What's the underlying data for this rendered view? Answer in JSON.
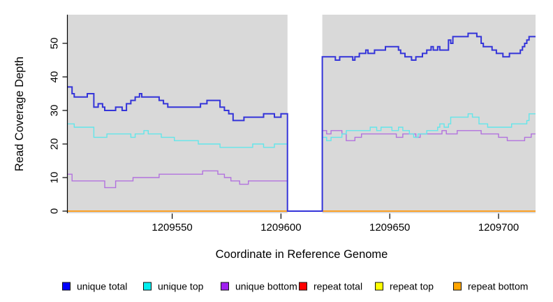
{
  "chart_data": {
    "type": "line",
    "subtype": "step-coverage-plot",
    "title": "",
    "xlabel": "Coordinate in Reference Genome",
    "ylabel": "Read Coverage Depth",
    "xlim": [
      1209502,
      1209717
    ],
    "ylim": [
      0,
      58
    ],
    "x_ticks": [
      "1209550",
      "1209600",
      "1209650",
      "1209700"
    ],
    "x_tick_values": [
      1209550,
      1209600,
      1209650,
      1209700
    ],
    "y_ticks": [
      "0",
      "10",
      "20",
      "30",
      "40",
      "50"
    ],
    "y_tick_values": [
      0,
      10,
      20,
      30,
      40,
      50
    ],
    "grid": false,
    "panel_bg": "#d9d9d9",
    "gap_region": {
      "from": 1209603,
      "to": 1209619,
      "fill": "#ffffff",
      "note": "white no-data column; all unique series drop to 0 across it"
    },
    "legend_position": "bottom",
    "series": [
      {
        "name": "unique total",
        "legend_fill": "#0000ff",
        "line_color": "#3434d9",
        "line_width": 2,
        "segments": [
          {
            "points": [
              [
                1209502,
                37
              ],
              [
                1209504,
                35
              ],
              [
                1209505,
                34
              ],
              [
                1209511,
                35
              ],
              [
                1209514,
                31
              ],
              [
                1209516,
                32
              ],
              [
                1209518,
                31
              ],
              [
                1209519,
                30
              ],
              [
                1209524,
                31
              ],
              [
                1209527,
                30
              ],
              [
                1209529,
                32
              ],
              [
                1209531,
                33
              ],
              [
                1209533,
                34
              ],
              [
                1209535,
                35
              ],
              [
                1209536,
                34
              ],
              [
                1209544,
                33
              ],
              [
                1209546,
                32
              ],
              [
                1209548,
                31
              ],
              [
                1209563,
                32
              ],
              [
                1209566,
                33
              ],
              [
                1209572,
                31
              ],
              [
                1209574,
                30
              ],
              [
                1209576,
                29
              ],
              [
                1209578,
                27
              ],
              [
                1209583,
                28
              ],
              [
                1209592,
                29
              ],
              [
                1209597,
                28
              ],
              [
                1209600,
                29
              ],
              [
                1209603,
                0
              ],
              [
                1209619,
                46
              ],
              [
                1209625,
                45
              ],
              [
                1209627,
                46
              ],
              [
                1209633,
                45
              ],
              [
                1209634,
                46
              ],
              [
                1209636,
                47
              ],
              [
                1209639,
                48
              ],
              [
                1209640,
                47
              ],
              [
                1209643,
                48
              ],
              [
                1209648,
                49
              ],
              [
                1209654,
                48
              ],
              [
                1209655,
                47
              ],
              [
                1209657,
                46
              ],
              [
                1209660,
                45
              ],
              [
                1209662,
                46
              ],
              [
                1209665,
                47
              ],
              [
                1209667,
                48
              ],
              [
                1209669,
                49
              ],
              [
                1209670,
                48
              ],
              [
                1209672,
                49
              ],
              [
                1209673,
                48
              ],
              [
                1209677,
                51
              ],
              [
                1209678,
                50
              ],
              [
                1209679,
                52
              ],
              [
                1209686,
                53
              ],
              [
                1209690,
                52
              ],
              [
                1209692,
                50
              ],
              [
                1209693,
                49
              ],
              [
                1209697,
                48
              ],
              [
                1209699,
                47
              ],
              [
                1209702,
                46
              ],
              [
                1209705,
                47
              ],
              [
                1209710,
                48
              ],
              [
                1209711,
                49
              ],
              [
                1209712,
                50
              ],
              [
                1209713,
                51
              ],
              [
                1209714,
                52
              ]
            ],
            "end": 1209717
          }
        ]
      },
      {
        "name": "unique top",
        "legend_fill": "#00eeee",
        "line_color": "#63e6ea",
        "line_width": 1.4,
        "segments": [
          {
            "points": [
              [
                1209502,
                26
              ],
              [
                1209505,
                25
              ],
              [
                1209514,
                22
              ],
              [
                1209520,
                23
              ],
              [
                1209531,
                22
              ],
              [
                1209533,
                23
              ],
              [
                1209537,
                24
              ],
              [
                1209539,
                23
              ],
              [
                1209545,
                22
              ],
              [
                1209551,
                21
              ],
              [
                1209562,
                20
              ],
              [
                1209572,
                19
              ],
              [
                1209587,
                20
              ],
              [
                1209592,
                19
              ],
              [
                1209597,
                20
              ],
              [
                1209603,
                0
              ],
              [
                1209619,
                22
              ],
              [
                1209621,
                21
              ],
              [
                1209623,
                22
              ],
              [
                1209628,
                23
              ],
              [
                1209630,
                24
              ],
              [
                1209641,
                25
              ],
              [
                1209644,
                24
              ],
              [
                1209646,
                25
              ],
              [
                1209651,
                24
              ],
              [
                1209654,
                25
              ],
              [
                1209656,
                24
              ],
              [
                1209659,
                23
              ],
              [
                1209661,
                22
              ],
              [
                1209663,
                23
              ],
              [
                1209667,
                24
              ],
              [
                1209672,
                25
              ],
              [
                1209673,
                26
              ],
              [
                1209675,
                25
              ],
              [
                1209677,
                26
              ],
              [
                1209678,
                28
              ],
              [
                1209686,
                29
              ],
              [
                1209688,
                28
              ],
              [
                1209691,
                26
              ],
              [
                1209695,
                25
              ],
              [
                1209706,
                26
              ],
              [
                1209713,
                27
              ],
              [
                1209714,
                29
              ]
            ],
            "end": 1209717
          }
        ]
      },
      {
        "name": "unique bottom",
        "legend_fill": "#a020f0",
        "line_color": "#b272de",
        "line_width": 1.4,
        "segments": [
          {
            "points": [
              [
                1209502,
                11
              ],
              [
                1209504,
                9
              ],
              [
                1209519,
                7
              ],
              [
                1209524,
                9
              ],
              [
                1209532,
                10
              ],
              [
                1209544,
                11
              ],
              [
                1209564,
                12
              ],
              [
                1209571,
                11
              ],
              [
                1209574,
                10
              ],
              [
                1209577,
                9
              ],
              [
                1209581,
                8
              ],
              [
                1209585,
                9
              ],
              [
                1209603,
                0
              ],
              [
                1209619,
                24
              ],
              [
                1209621,
                23
              ],
              [
                1209623,
                24
              ],
              [
                1209628,
                23
              ],
              [
                1209630,
                21
              ],
              [
                1209634,
                22
              ],
              [
                1209637,
                23
              ],
              [
                1209653,
                22
              ],
              [
                1209656,
                23
              ],
              [
                1209662,
                22
              ],
              [
                1209664,
                23
              ],
              [
                1209674,
                24
              ],
              [
                1209676,
                23
              ],
              [
                1209681,
                24
              ],
              [
                1209692,
                23
              ],
              [
                1209700,
                22
              ],
              [
                1209704,
                21
              ],
              [
                1209712,
                22
              ],
              [
                1209715,
                23
              ]
            ],
            "end": 1209717
          }
        ]
      },
      {
        "name": "repeat total",
        "legend_fill": "#ff0000",
        "line_color": "#e02020",
        "line_width": 1.4,
        "segments": [
          {
            "points": [
              [
                1209502,
                0
              ]
            ],
            "end": 1209603
          },
          {
            "points": [
              [
                1209619,
                0
              ]
            ],
            "end": 1209717
          }
        ]
      },
      {
        "name": "repeat top",
        "legend_fill": "#ffff00",
        "line_color": "#f0e130",
        "line_width": 1.4,
        "segments": [
          {
            "points": [
              [
                1209502,
                0
              ]
            ],
            "end": 1209603
          },
          {
            "points": [
              [
                1209619,
                0
              ]
            ],
            "end": 1209717
          }
        ]
      },
      {
        "name": "repeat bottom",
        "legend_fill": "#ffa500",
        "line_color": "#ff9e1c",
        "line_width": 1.8,
        "segments": [
          {
            "points": [
              [
                1209502,
                0
              ]
            ],
            "end": 1209603
          },
          {
            "points": [
              [
                1209619,
                0
              ]
            ],
            "end": 1209717
          }
        ]
      }
    ]
  }
}
